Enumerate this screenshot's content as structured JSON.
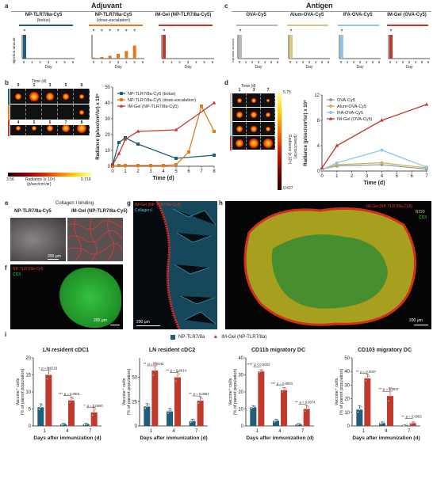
{
  "sections": {
    "adjuvant": "Adjuvant",
    "antigen": "Antigen"
  },
  "panel_letters": [
    "a",
    "b",
    "c",
    "d",
    "e",
    "f",
    "g",
    "h",
    "i"
  ],
  "panel_a": {
    "groups": [
      {
        "title": "NP-TLR7/8a-Cy5",
        "subtitle": "(bolus)",
        "color": "#1f5f7a"
      },
      {
        "title": "NP-TLR7/8a-Cy5",
        "subtitle": "(dose-escalation)",
        "color": "#e07a1f"
      },
      {
        "title": "IM-Gel (NP-TLR7/8a-Cy5)",
        "subtitle": "",
        "color": "#c0392b"
      }
    ],
    "ylabel": "Injection amount",
    "xlabel": "Day",
    "ticks": [
      "0",
      "1",
      "2",
      "3",
      "4",
      "5",
      "6"
    ],
    "dose_escalation_fractions": [
      0.04,
      0.07,
      0.12,
      0.2,
      0.32,
      0.55
    ]
  },
  "panel_c": {
    "groups": [
      {
        "title": "OVA-Cy5",
        "color": "#b8b8b8"
      },
      {
        "title": "Alum-OVA-Cy5",
        "color": "#d9c77a"
      },
      {
        "title": "IFA-OVA-Cy5",
        "color": "#8fc6e8"
      },
      {
        "title": "IM-Gel (OVA-Cy5)",
        "color": "#c0392b"
      }
    ],
    "ylabel": "Injection amount",
    "xlabel": "Day",
    "ticks": [
      "0",
      "1",
      "2",
      "3",
      "4",
      "5",
      "6"
    ]
  },
  "panel_b": {
    "image_header": "Time (d)",
    "time_top": [
      "0",
      "1",
      "3",
      "5",
      "8"
    ],
    "time_bottom": [
      "4",
      "5",
      "6",
      "7",
      "8"
    ],
    "colorbar_label": "Radiance (x 10⁸)",
    "colorbar_unit": "(p/sec/cm²/sr)",
    "colorbar_min": "3.56",
    "colorbar_max": "0.719"
  },
  "panel_d": {
    "image_header": "Time (d)",
    "time_top": [
      "1",
      "3",
      "7"
    ],
    "colorbar_max": "5.75",
    "colorbar_min": "0.427",
    "colorbar_label": "Radiance (x 10⁸)",
    "colorbar_unit": "(p/sec/cm²/sr)"
  },
  "chart_data": [
    {
      "type": "line",
      "xlabel": "Time (d)",
      "ylabel": "Radiance (p/sec/cm²/sr) x 10⁸",
      "xlim": [
        0,
        8
      ],
      "ylim": [
        0,
        50
      ],
      "xticks": [
        0,
        1,
        2,
        3,
        4,
        5,
        6,
        7,
        8
      ],
      "yticks": [
        0,
        10,
        20,
        30,
        40,
        50
      ],
      "legend_position": "top-right",
      "series": [
        {
          "name": "NP-TLR7/8a-Cy5 (bolus)",
          "color": "#1f5f7a",
          "marker": "square",
          "x": [
            0,
            0.5,
            1,
            2,
            5,
            8
          ],
          "y": [
            1,
            15,
            18,
            14,
            5,
            7
          ]
        },
        {
          "name": "NP-TLR7/8a-Cy5 (dose-escalation)",
          "color": "#e07a1f",
          "marker": "square",
          "x": [
            0,
            0.5,
            1,
            2,
            3,
            4,
            5,
            6,
            7,
            8
          ],
          "y": [
            0,
            0.5,
            0.5,
            0.5,
            0.5,
            0.5,
            1,
            9,
            38,
            22
          ]
        },
        {
          "name": "IM-Gel (NP-TLR7/8a-Cy5)",
          "color": "#c0392b",
          "marker": "triangle",
          "x": [
            0,
            0.5,
            1,
            2,
            5,
            8
          ],
          "y": [
            1,
            8,
            17,
            22,
            23,
            40
          ]
        }
      ]
    },
    {
      "type": "line",
      "xlabel": "Time (d)",
      "ylabel": "Radiance (p/sec/cm²/sr) x 10⁸",
      "xlim": [
        0,
        7
      ],
      "ylim": [
        0,
        12
      ],
      "xticks": [
        0,
        1,
        2,
        3,
        4,
        5,
        6,
        7
      ],
      "yticks": [
        0,
        4,
        8,
        12
      ],
      "legend_position": "top-left",
      "series": [
        {
          "name": "OVA-Cy5",
          "color": "#9a9a9a",
          "marker": "circle",
          "x": [
            0,
            1,
            4,
            7
          ],
          "y": [
            0.3,
            0.8,
            1,
            0.3
          ]
        },
        {
          "name": "Alum-OVA-Cy5",
          "color": "#c9b458",
          "marker": "circle",
          "x": [
            0,
            1,
            4,
            7
          ],
          "y": [
            0.2,
            1,
            1.3,
            0.5
          ]
        },
        {
          "name": "IFA-OVA-Cy5",
          "color": "#8fc6e8",
          "marker": "circle",
          "x": [
            0,
            1,
            4,
            7
          ],
          "y": [
            0.2,
            1.3,
            3.3,
            0.6
          ]
        },
        {
          "name": "IM-Gel (OVA-Cy5)",
          "color": "#c0392b",
          "marker": "triangle",
          "x": [
            0,
            1,
            4,
            7
          ],
          "y": [
            0.5,
            4,
            8,
            10.5
          ]
        }
      ]
    },
    {
      "type": "bar",
      "title": "LN resident cDC1",
      "categories": [
        "1",
        "4",
        "7"
      ],
      "xlabel": "Days after immunization (d)",
      "ylabel": "Vaccine⁺ cells (% of parent population)",
      "ylim": [
        0,
        20
      ],
      "yticks": [
        0,
        5,
        10,
        15,
        20
      ],
      "series": [
        {
          "name": "NP-TLR7/8a",
          "color": "#1f5f7a",
          "values": [
            5.5,
            0.5,
            0.5
          ]
        },
        {
          "name": "IM-Gel (NP-TLR7/8a)",
          "color": "#c0392b",
          "values": [
            15,
            7.5,
            4
          ]
        }
      ],
      "annotations": [
        {
          "label": "p = 0.0216",
          "stars": "*"
        },
        {
          "label": "p = 0.0001",
          "stars": "***"
        },
        {
          "label": "p = 0.0500",
          "stars": "*"
        }
      ]
    },
    {
      "type": "bar",
      "title": "LN resident cDC2",
      "categories": [
        "1",
        "4",
        "7"
      ],
      "xlabel": "Days after immunization (d)",
      "ylabel": "Vaccine⁺ cells (% of parent population)",
      "ylim": [
        0,
        70
      ],
      "yticks": [
        0,
        25,
        50
      ],
      "series": [
        {
          "name": "NP-TLR7/8a",
          "color": "#1f5f7a",
          "values": [
            20,
            15,
            5
          ]
        },
        {
          "name": "IM-Gel (NP-TLR7/8a)",
          "color": "#c0392b",
          "values": [
            57,
            50,
            26
          ]
        }
      ],
      "annotations": [
        {
          "label": "p = 0.0043",
          "stars": "**"
        },
        {
          "label": "p = 0.0014",
          "stars": "**"
        },
        {
          "label": "p = 0.0067",
          "stars": "**"
        }
      ]
    },
    {
      "type": "bar",
      "title": "CD11b migratory DC",
      "categories": [
        "1",
        "4",
        "7"
      ],
      "xlabel": "Days after immunization (d)",
      "ylabel": "Vaccine⁺ cells (% of parent population)",
      "ylim": [
        0,
        40
      ],
      "yticks": [
        0,
        10,
        20,
        30,
        40
      ],
      "series": [
        {
          "name": "NP-TLR7/8a",
          "color": "#1f5f7a",
          "values": [
            11,
            3,
            1
          ]
        },
        {
          "name": "IM-Gel (NP-TLR7/8a)",
          "color": "#c0392b",
          "values": [
            32,
            21,
            10
          ]
        }
      ],
      "annotations": [
        {
          "label": "p < 0.0001",
          "stars": "****"
        },
        {
          "label": "p = 0.0004",
          "stars": "***"
        },
        {
          "label": "p = 0.0074",
          "stars": "**"
        }
      ]
    },
    {
      "type": "bar",
      "title": "CD103 migratory DC",
      "categories": [
        "1",
        "4",
        "7"
      ],
      "xlabel": "Days after immunization (d)",
      "ylabel": "Vaccine⁺ cells (% of parent population)",
      "ylim": [
        0,
        50
      ],
      "yticks": [
        0,
        10,
        20,
        30,
        40,
        50
      ],
      "series": [
        {
          "name": "NP-TLR7/8a",
          "color": "#1f5f7a",
          "values": [
            12,
            2,
            0.5
          ]
        },
        {
          "name": "IM-Gel (NP-TLR7/8a)",
          "color": "#c0392b",
          "values": [
            35,
            22,
            2
          ]
        }
      ],
      "annotations": [
        {
          "label": "p = 0.0027",
          "stars": "**"
        },
        {
          "label": "p = 0.0037",
          "stars": "**"
        },
        {
          "label": "p = 0.0063",
          "stars": "**"
        }
      ]
    }
  ],
  "panel_e": {
    "title": "Collagen I binding",
    "left_label": "NP-TLR7/8a-Cy5",
    "right_label": "IM-Gel (NP-TLR7/8a-Cy5)",
    "scale": "200 μm"
  },
  "panel_f": {
    "label1": "NP-TLR7/8a-Cy5",
    "label2": "CD3",
    "scale": "200 μm"
  },
  "panel_g": {
    "label1": "IM-Gel (NP-TLR7/8a-Cy5)",
    "label2": "Collagen I",
    "scale": "200 μm"
  },
  "panel_h": {
    "label1": "IM-Gel (NP-TLR7/8a-Cy5)",
    "label2": "B220",
    "label3": "CD3",
    "scale": "200 μm"
  },
  "panel_i": {
    "legend": [
      {
        "name": "NP-TLR7/8a",
        "color": "#1f5f7a",
        "marker": "square"
      },
      {
        "name": "IM-Gel (NP-TLR7/8a)",
        "color": "#c0392b",
        "marker": "triangle"
      }
    ]
  }
}
